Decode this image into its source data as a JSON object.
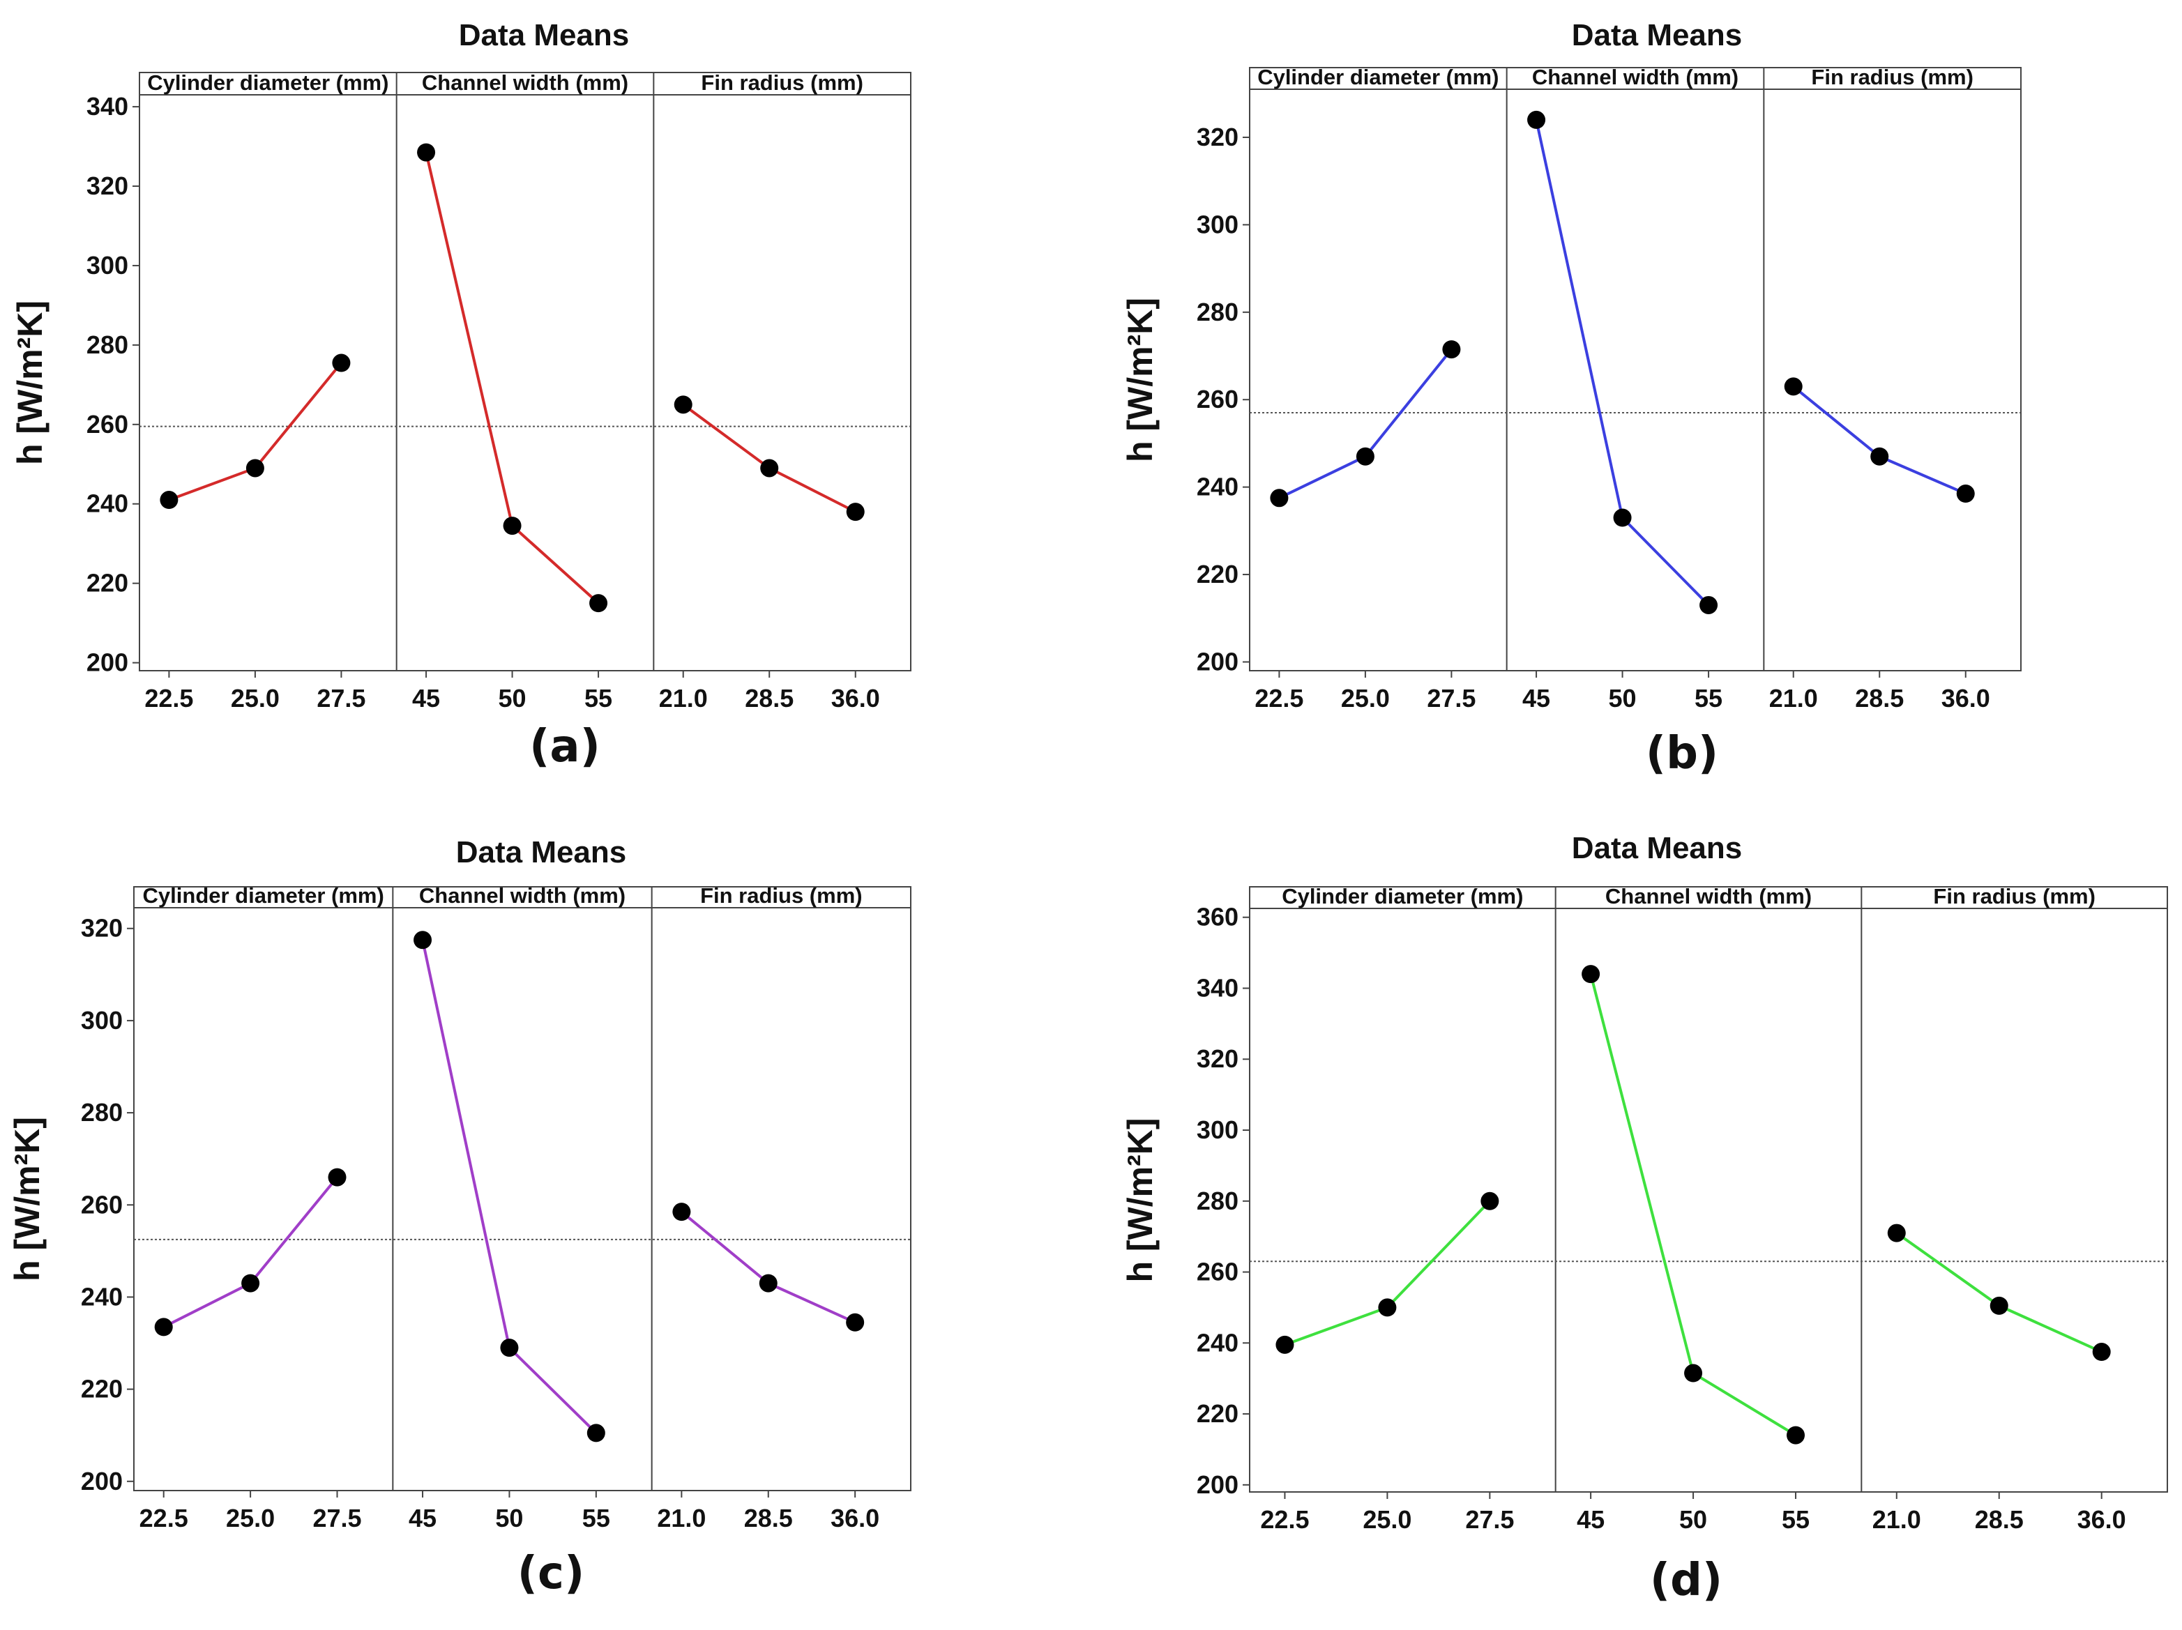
{
  "figure": {
    "panel_count": 4
  },
  "chart_data": [
    {
      "id": "a",
      "type": "line",
      "title": "Data Means",
      "ylabel": "h [W/m²K]",
      "ylim": [
        198,
        343
      ],
      "yticks": [
        200,
        220,
        240,
        260,
        280,
        300,
        320,
        340
      ],
      "mean": 259.5,
      "color": "#d42a2a",
      "caption": "(a)",
      "factors": [
        {
          "name": "Cylinder diameter (mm)",
          "levels": [
            "22.5",
            "25.0",
            "27.5"
          ],
          "values": [
            241,
            249,
            275.5
          ]
        },
        {
          "name": "Channel width (mm)",
          "levels": [
            "45",
            "50",
            "55"
          ],
          "values": [
            328.5,
            234.5,
            215
          ]
        },
        {
          "name": "Fin radius (mm)",
          "levels": [
            "21.0",
            "28.5",
            "36.0"
          ],
          "values": [
            265,
            249,
            238
          ]
        }
      ]
    },
    {
      "id": "b",
      "type": "line",
      "title": "Data Means",
      "ylabel": "h [W/m²K]",
      "ylim": [
        198,
        331
      ],
      "yticks": [
        200,
        220,
        240,
        260,
        280,
        300,
        320
      ],
      "mean": 257,
      "color": "#3b3fe0",
      "caption": "(b)",
      "factors": [
        {
          "name": "Cylinder diameter (mm)",
          "levels": [
            "22.5",
            "25.0",
            "27.5"
          ],
          "values": [
            237.5,
            247,
            271.5
          ]
        },
        {
          "name": "Channel width (mm)",
          "levels": [
            "45",
            "50",
            "55"
          ],
          "values": [
            324,
            233,
            213
          ]
        },
        {
          "name": "Fin radius (mm)",
          "levels": [
            "21.0",
            "28.5",
            "36.0"
          ],
          "values": [
            263,
            247,
            238.5
          ]
        }
      ]
    },
    {
      "id": "c",
      "type": "line",
      "title": "Data Means",
      "ylabel": "h [W/m²K]",
      "ylim": [
        198,
        324.5
      ],
      "yticks": [
        200,
        220,
        240,
        260,
        280,
        300,
        320
      ],
      "mean": 252.5,
      "color": "#a03ec8",
      "caption": "(c)",
      "factors": [
        {
          "name": "Cylinder diameter (mm)",
          "levels": [
            "22.5",
            "25.0",
            "27.5"
          ],
          "values": [
            233.5,
            243,
            266
          ]
        },
        {
          "name": "Channel width (mm)",
          "levels": [
            "45",
            "50",
            "55"
          ],
          "values": [
            317.5,
            229,
            210.5
          ]
        },
        {
          "name": "Fin radius (mm)",
          "levels": [
            "21.0",
            "28.5",
            "36.0"
          ],
          "values": [
            258.5,
            243,
            234.5
          ]
        }
      ]
    },
    {
      "id": "d",
      "type": "line",
      "title": "Data Means",
      "ylabel": "h [W/m²K]",
      "ylim": [
        198,
        362.5
      ],
      "yticks": [
        200,
        220,
        240,
        260,
        280,
        300,
        320,
        340,
        360
      ],
      "mean": 263,
      "color": "#3ee03e",
      "caption": "(d)",
      "factors": [
        {
          "name": "Cylinder diameter (mm)",
          "levels": [
            "22.5",
            "25.0",
            "27.5"
          ],
          "values": [
            239.5,
            250,
            280
          ]
        },
        {
          "name": "Channel width (mm)",
          "levels": [
            "45",
            "50",
            "55"
          ],
          "values": [
            344,
            231.5,
            214
          ]
        },
        {
          "name": "Fin radius (mm)",
          "levels": [
            "21.0",
            "28.5",
            "36.0"
          ],
          "values": [
            271,
            250.5,
            237.5
          ]
        }
      ]
    }
  ]
}
